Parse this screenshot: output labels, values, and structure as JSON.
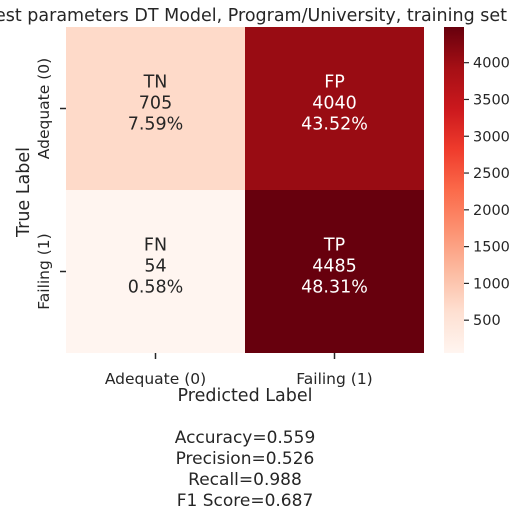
{
  "chart_data": {
    "type": "heatmap",
    "title": "Best parameters DT Model, Program/University, training set",
    "xlabel": "Predicted Label",
    "ylabel": "True Label",
    "x_tick_labels": [
      "Adequate (0)",
      "Failing (1)"
    ],
    "y_tick_labels": [
      "Adequate (0)",
      "Failing (1)"
    ],
    "cells": [
      [
        {
          "name": "TN",
          "count": 705,
          "count_label": "705",
          "percent_label": "7.59%"
        },
        {
          "name": "FP",
          "count": 4040,
          "count_label": "4040",
          "percent_label": "43.52%"
        }
      ],
      [
        {
          "name": "FN",
          "count": 54,
          "count_label": "54",
          "percent_label": "0.58%"
        },
        {
          "name": "TP",
          "count": 4485,
          "count_label": "4485",
          "percent_label": "48.31%"
        }
      ]
    ],
    "colormap": "Reds",
    "colorbar": {
      "vmin": 54,
      "vmax": 4485,
      "ticks": [
        500,
        1000,
        1500,
        2000,
        2500,
        3000,
        3500,
        4000
      ],
      "tick_labels": [
        "500",
        "1000",
        "1500",
        "2000",
        "2500",
        "3000",
        "3500",
        "4000"
      ]
    },
    "grid": false
  },
  "metrics": {
    "accuracy": "Accuracy=0.559",
    "precision": "Precision=0.526",
    "recall": "Recall=0.988",
    "f1": "F1 Score=0.687"
  }
}
